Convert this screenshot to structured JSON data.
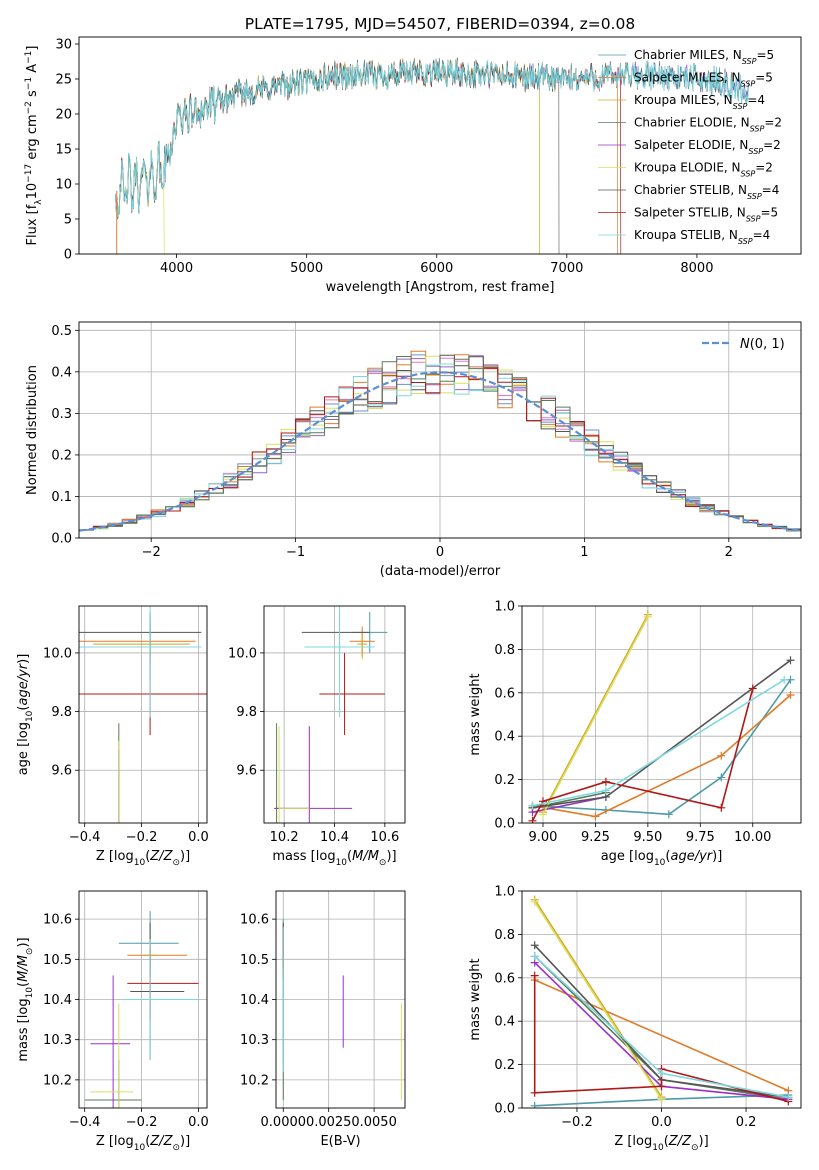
{
  "figure_title": "PLATE=1795, MJD=54507, FIBERID=0394, z=0.08",
  "legend_spectrum": [
    "Chabrier MILES, N_SSP=5",
    "Salpeter MILES, N_SSP=5",
    "Kroupa MILES, N_SSP=4",
    "Chabrier ELODIE, N_SSP=2",
    "Salpeter ELODIE, N_SSP=2",
    "Kroupa ELODIE, N_SSP=2",
    "Chabrier STELIB, N_SSP=4",
    "Salpeter STELIB, N_SSP=5",
    "Kroupa STELIB, N_SSP=4"
  ],
  "model_colors": [
    "#4f9aa8",
    "#e07b28",
    "#d7a51b",
    "#5a7a5a",
    "#9b30c8",
    "#d8e060",
    "#555555",
    "#b01818",
    "#7ed8e0"
  ],
  "chart_data": [
    {
      "id": "spectrum",
      "type": "line",
      "xlabel": "wavelength [Angstrom, rest frame]",
      "ylabel": "Flux [f_λ 10^-17 erg cm^-2 s^-1 A^-1]",
      "xlim": [
        3250,
        8800
      ],
      "ylim": [
        0,
        31
      ],
      "xticks": [
        4000,
        5000,
        6000,
        7000,
        8000
      ],
      "yticks": [
        0,
        5,
        10,
        15,
        20,
        25,
        30
      ],
      "grid": false,
      "legend": "top-right",
      "continuum": {
        "x": [
          3550,
          3700,
          3800,
          3900,
          3950,
          4000,
          4100,
          4300,
          4500,
          4800,
          5000,
          5200,
          5500,
          6000,
          6500,
          7000,
          7400,
          7800,
          8200,
          8400
        ],
        "y": [
          9,
          10,
          11,
          12,
          15,
          19,
          20,
          21.5,
          23,
          24,
          24.5,
          25.5,
          25.5,
          26,
          25.5,
          25,
          25.5,
          25.5,
          24.5,
          23
        ]
      }
    },
    {
      "id": "residuals",
      "type": "histogram",
      "xlabel": "(data-model)/error",
      "ylabel": "Normed distribution",
      "xlim": [
        -2.5,
        2.5
      ],
      "ylim": [
        0,
        0.52
      ],
      "xticks": [
        -2,
        -1,
        0,
        1,
        2
      ],
      "yticks": [
        0.0,
        0.1,
        0.2,
        0.3,
        0.4,
        0.5
      ],
      "grid": true,
      "legend": "top-right",
      "reference_curve": "N(0,1)",
      "bin_width": 0.1,
      "n_bins": 50
    },
    {
      "id": "age_vs_Z",
      "type": "errorbar",
      "xlabel": "Z [log10(Z/Z☉)]",
      "ylabel": "age [log10(age/yr)]",
      "xlim": [
        -0.42,
        0.03
      ],
      "ylim": [
        9.42,
        10.16
      ],
      "xticks": [
        -0.4,
        -0.2,
        0.0
      ],
      "yticks": [
        9.6,
        9.8,
        10.0
      ],
      "grid": true,
      "points": [
        {
          "x": -0.17,
          "y": 10.02,
          "xerr": [
            0.22,
            0.16
          ],
          "yerr": 0.11
        },
        {
          "x": -0.17,
          "y": 10.04,
          "xerr": [
            0.25,
            0.16
          ],
          "yerr": 0.07
        },
        {
          "x": -0.17,
          "y": 10.03,
          "xerr": [
            0.2,
            0.14
          ],
          "yerr": 0.05
        },
        {
          "x": -0.28,
          "y": 9.47,
          "xerr": [
            0.0,
            0.0
          ],
          "yerr": 0.29
        },
        {
          "x": -0.28,
          "y": 9.47,
          "xerr": [
            0.0,
            0.0
          ],
          "yerr": 0.2
        },
        {
          "x": -0.28,
          "y": 9.47,
          "xerr": [
            0.0,
            0.0
          ],
          "yerr": 0.23
        },
        {
          "x": -0.17,
          "y": 10.07,
          "xerr": [
            0.27,
            0.18
          ],
          "yerr": 0.07
        },
        {
          "x": -0.17,
          "y": 9.86,
          "xerr": [
            0.27,
            0.2
          ],
          "yerr": 0.14
        },
        {
          "x": -0.17,
          "y": 10.02,
          "xerr": [
            0.25,
            0.18
          ],
          "yerr": 0.24
        }
      ]
    },
    {
      "id": "age_vs_mass",
      "type": "errorbar",
      "xlabel": "mass [log10(M/M☉)]",
      "ylabel": "",
      "xlim": [
        10.12,
        10.68
      ],
      "ylim": [
        9.42,
        10.16
      ],
      "xticks": [
        10.2,
        10.4,
        10.6
      ],
      "yticks": [
        9.6,
        9.8,
        10.0
      ],
      "grid": true,
      "points": [
        {
          "x": 10.54,
          "y": 10.07,
          "xerr": [
            0.07,
            0.07
          ],
          "yerr": 0.07
        },
        {
          "x": 10.51,
          "y": 10.04,
          "xerr": [
            0.05,
            0.05
          ],
          "yerr": 0.05
        },
        {
          "x": 10.51,
          "y": 10.03,
          "xerr": [
            0.02,
            0.02
          ],
          "yerr": 0.05
        },
        {
          "x": 10.17,
          "y": 9.47,
          "xerr": [
            0.0,
            0.13
          ],
          "yerr": 0.29
        },
        {
          "x": 10.3,
          "y": 9.47,
          "xerr": [
            0.14,
            0.17
          ],
          "yerr": 0.28
        },
        {
          "x": 10.18,
          "y": 9.47,
          "xerr": [
            0.0,
            0.12
          ],
          "yerr": 0.28
        },
        {
          "x": 10.42,
          "y": 10.07,
          "xerr": [
            0.15,
            0.12
          ],
          "yerr": 0.07
        },
        {
          "x": 10.44,
          "y": 9.86,
          "xerr": [
            0.1,
            0.16
          ],
          "yerr": 0.14
        },
        {
          "x": 10.42,
          "y": 10.02,
          "xerr": [
            0.14,
            0.14
          ],
          "yerr": 0.24
        }
      ]
    },
    {
      "id": "weight_vs_age",
      "type": "line",
      "xlabel": "age [log10(age/yr)]",
      "ylabel": "mass weight",
      "xlim": [
        8.9,
        10.23
      ],
      "ylim": [
        0,
        1.0
      ],
      "xticks": [
        9.0,
        9.25,
        9.5,
        9.75,
        10.0
      ],
      "yticks": [
        0.0,
        0.2,
        0.4,
        0.6,
        0.8,
        1.0
      ],
      "grid": true,
      "series": [
        {
          "x": [
            8.95,
            9.3,
            9.6,
            9.85,
            10.18
          ],
          "y": [
            0.08,
            0.06,
            0.04,
            0.21,
            0.66
          ]
        },
        {
          "x": [
            8.95,
            9.25,
            9.85,
            10.18
          ],
          "y": [
            0.08,
            0.03,
            0.31,
            0.59
          ]
        },
        {
          "x": [
            9.0,
            9.5
          ],
          "y": [
            0.05,
            0.96
          ]
        },
        {
          "x": [
            8.95,
            9.3
          ],
          "y": [
            0.07,
            0.14
          ]
        },
        {
          "x": [
            8.95,
            9.3
          ],
          "y": [
            0.05,
            0.12
          ]
        },
        {
          "x": [
            9.0,
            9.5
          ],
          "y": [
            0.04,
            0.95
          ]
        },
        {
          "x": [
            8.95,
            9.3,
            10.18
          ],
          "y": [
            0.07,
            0.12,
            0.75
          ]
        },
        {
          "x": [
            8.95,
            9.0,
            9.3,
            9.85,
            10.0
          ],
          "y": [
            0.01,
            0.1,
            0.19,
            0.07,
            0.62
          ]
        },
        {
          "x": [
            8.95,
            9.3,
            10.15
          ],
          "y": [
            0.08,
            0.15,
            0.66
          ]
        }
      ]
    },
    {
      "id": "mass_vs_Z",
      "type": "errorbar",
      "xlabel": "Z [log10(Z/Z☉)]",
      "ylabel": "mass [log10(M/M☉)]",
      "xlim": [
        -0.42,
        0.03
      ],
      "ylim": [
        10.13,
        10.67
      ],
      "xticks": [
        -0.4,
        -0.2,
        0.0
      ],
      "yticks": [
        10.2,
        10.3,
        10.4,
        10.5,
        10.6
      ],
      "grid": true,
      "points": [
        {
          "x": -0.17,
          "y": 10.54,
          "xerr": [
            0.11,
            0.1
          ],
          "yerr": 0.08
        },
        {
          "x": -0.17,
          "y": 10.51,
          "xerr": [
            0.08,
            0.13
          ],
          "yerr": 0.05
        },
        {
          "x": -0.17,
          "y": 10.51,
          "xerr": [
            0.02,
            0.02
          ],
          "yerr": 0.05
        },
        {
          "x": -0.28,
          "y": 10.15,
          "xerr": [
            0.12,
            0.08
          ],
          "yerr": 0.1
        },
        {
          "x": -0.3,
          "y": 10.29,
          "xerr": [
            0.08,
            0.06
          ],
          "yerr": 0.17
        },
        {
          "x": -0.28,
          "y": 10.17,
          "xerr": [
            0.1,
            0.05
          ],
          "yerr": 0.22
        },
        {
          "x": -0.17,
          "y": 10.42,
          "xerr": [
            0.07,
            0.12
          ],
          "yerr": 0.17
        },
        {
          "x": -0.17,
          "y": 10.44,
          "xerr": [
            0.08,
            0.17
          ],
          "yerr": 0.09
        },
        {
          "x": -0.17,
          "y": 10.4,
          "xerr": [
            0.1,
            0.17
          ],
          "yerr": 0.15
        }
      ]
    },
    {
      "id": "mass_vs_ebv",
      "type": "errorbar",
      "xlabel": "E(B-V)",
      "ylabel": "",
      "xlim": [
        -0.0004,
        0.0067
      ],
      "ylim": [
        10.13,
        10.67
      ],
      "xticks": [
        0.0,
        0.0025,
        0.005
      ],
      "xtick_labels": [
        "0.0000",
        "0.0025",
        "0.0050"
      ],
      "yticks": [
        10.2,
        10.3,
        10.4,
        10.5,
        10.6
      ],
      "grid": true,
      "points": [
        {
          "x": 0.0,
          "y": 10.54,
          "xerr": [
            0.0,
            0.0
          ],
          "yerr": 0.06
        },
        {
          "x": 0.0,
          "y": 10.52,
          "xerr": [
            0.0,
            0.0
          ],
          "yerr": 0.07
        },
        {
          "x": 0.0,
          "y": 10.51,
          "xerr": [
            0.0,
            0.0
          ],
          "yerr": 0.04
        },
        {
          "x": 0.0,
          "y": 10.2,
          "xerr": [
            0.0,
            0.0
          ],
          "yerr": 0.05
        },
        {
          "x": 0.0033,
          "y": 10.37,
          "xerr": [
            0.0,
            0.0
          ],
          "yerr": 0.09
        },
        {
          "x": 0.0065,
          "y": 10.27,
          "xerr": [
            0.0,
            0.0
          ],
          "yerr": 0.12
        },
        {
          "x": 0.0,
          "y": 10.42,
          "xerr": [
            0.0,
            0.0
          ],
          "yerr": 0.17
        },
        {
          "x": 0.0,
          "y": 10.53,
          "xerr": [
            0.0,
            0.0
          ],
          "yerr": 0.05
        },
        {
          "x": 0.0,
          "y": 10.4,
          "xerr": [
            0.0,
            0.0
          ],
          "yerr": 0.18
        }
      ]
    },
    {
      "id": "weight_vs_Z",
      "type": "line",
      "xlabel": "Z [log10(Z/Z☉)]",
      "ylabel": "mass weight",
      "xlim": [
        -0.33,
        0.33
      ],
      "ylim": [
        0,
        1.0
      ],
      "xticks": [
        -0.2,
        0.0,
        0.2
      ],
      "yticks": [
        0.0,
        0.2,
        0.4,
        0.6,
        0.8,
        1.0
      ],
      "grid": true,
      "series": [
        {
          "x": [
            -0.3,
            0.0,
            0.3
          ],
          "y": [
            0.01,
            0.04,
            0.06
          ]
        },
        {
          "x": [
            -0.3,
            0.3
          ],
          "y": [
            0.59,
            0.08
          ]
        },
        {
          "x": [
            -0.3,
            0.0
          ],
          "y": [
            0.96,
            0.05
          ]
        },
        {
          "x": [
            -0.3,
            0.0,
            0.3
          ],
          "y": [
            0.7,
            0.13,
            0.04
          ]
        },
        {
          "x": [
            -0.3,
            0.0,
            0.3
          ],
          "y": [
            0.67,
            0.1,
            0.04
          ]
        },
        {
          "x": [
            -0.3,
            0.0
          ],
          "y": [
            0.95,
            0.04
          ]
        },
        {
          "x": [
            -0.3,
            0.0,
            0.3
          ],
          "y": [
            0.75,
            0.13,
            0.05
          ]
        },
        {
          "x": [
            -0.3,
            -0.3,
            0.0,
            0.0,
            0.3
          ],
          "y": [
            0.61,
            0.07,
            0.1,
            0.18,
            0.03
          ]
        },
        {
          "x": [
            -0.3,
            0.0,
            0.3
          ],
          "y": [
            0.7,
            0.16,
            0.05
          ]
        }
      ]
    }
  ]
}
